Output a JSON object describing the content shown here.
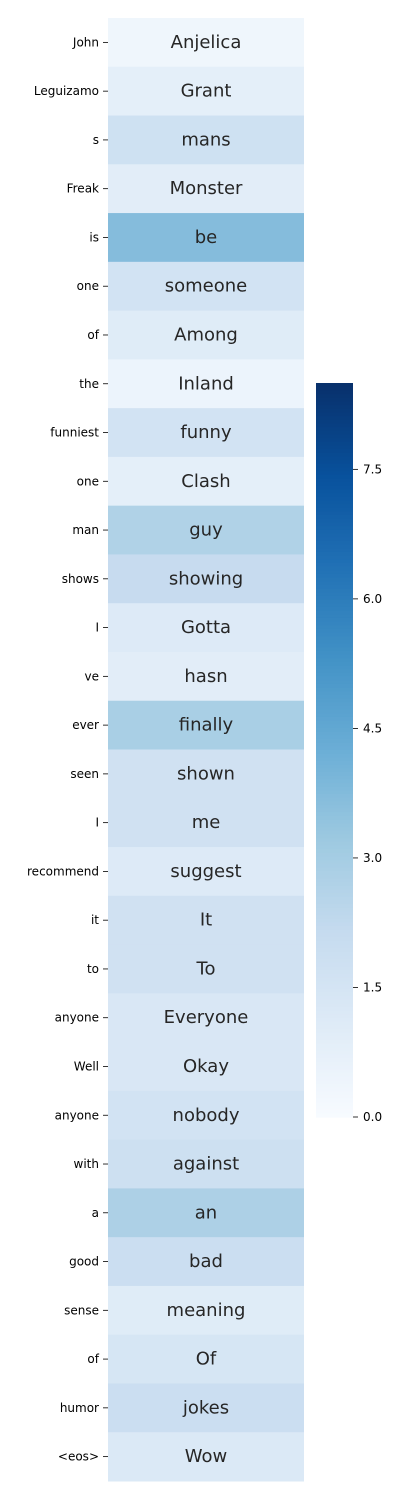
{
  "chart_data": {
    "type": "heatmap",
    "rows": [
      "John",
      "Leguizamo",
      "s",
      "Freak",
      "is",
      "one",
      "of",
      "the",
      "funniest",
      "one",
      "man",
      "shows",
      "I",
      "ve",
      "ever",
      "seen",
      "I",
      "recommend",
      "it",
      "to",
      "anyone",
      "Well",
      "anyone",
      "with",
      "a",
      "good",
      "sense",
      "of",
      "humor",
      "<eos>"
    ],
    "cells": [
      "Anjelica",
      "Grant",
      "mans",
      "Monster",
      "be",
      "someone",
      "Among",
      "Inland",
      "funny",
      "Clash",
      "guy",
      "showing",
      "Gotta",
      "hasn",
      "finally",
      "shown",
      "me",
      "suggest",
      "It",
      "To",
      "Everyone",
      "Okay",
      "nobody",
      "against",
      "an",
      "bad",
      "meaning",
      "Of",
      "jokes",
      "Wow"
    ],
    "values": [
      0.35,
      0.8,
      1.75,
      0.9,
      3.7,
      1.6,
      1.0,
      0.45,
      1.6,
      0.8,
      2.7,
      2.1,
      1.1,
      0.9,
      2.9,
      1.7,
      1.7,
      1.1,
      1.7,
      1.7,
      1.3,
      1.3,
      1.6,
      1.8,
      2.8,
      1.9,
      1.0,
      1.4,
      1.9,
      1.2
    ],
    "colorbar": {
      "range": [
        0,
        8.5
      ],
      "ticks": [
        0.0,
        1.5,
        3.0,
        4.5,
        6.0,
        7.5
      ],
      "tick_labels": [
        "0.0",
        "1.5",
        "3.0",
        "4.5",
        "6.0",
        "7.5"
      ]
    },
    "colormap": "Blues"
  }
}
